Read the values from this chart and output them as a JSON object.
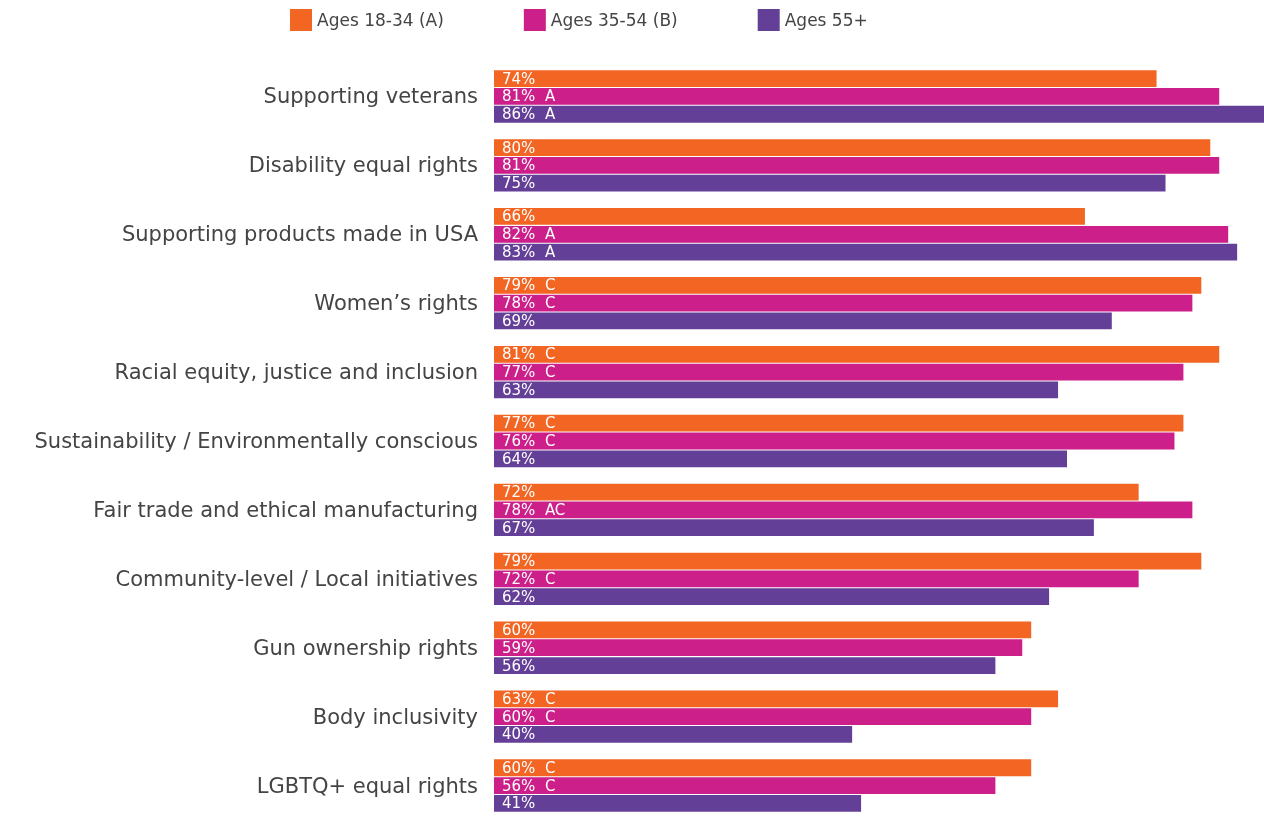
{
  "chart_data": {
    "type": "bar",
    "orientation": "horizontal",
    "legend": "top",
    "categories": [
      "Supporting veterans",
      "Disability equal rights",
      "Supporting products made in USA",
      "Women’s rights",
      "Racial equity, justice and inclusion",
      "Sustainability / Environmentally conscious",
      "Fair trade and ethical manufacturing",
      "Community-level / Local initiatives",
      "Gun ownership rights",
      "Body inclusivity",
      "LGBTQ+ equal rights"
    ],
    "series": [
      {
        "name": "Ages 18-34 (A)",
        "color": "#f26522",
        "values": [
          74,
          80,
          66,
          79,
          81,
          77,
          72,
          79,
          60,
          63,
          60
        ],
        "value_labels": [
          "74%",
          "80%",
          "66%",
          "79%  C",
          "81%  C",
          "77%  C",
          "72%",
          "79%",
          "60%",
          "63%  C",
          "60%  C"
        ]
      },
      {
        "name": "Ages 35-54 (B)",
        "color": "#cc1f8a",
        "values": [
          81,
          81,
          82,
          78,
          77,
          76,
          78,
          72,
          59,
          60,
          56
        ],
        "value_labels": [
          "81%  A",
          "81%",
          "82%  A",
          "78%  C",
          "77%  C",
          "76%  C",
          "78%  AC",
          "72%  C",
          "59%",
          "60%  C",
          "56%  C"
        ]
      },
      {
        "name": "Ages 55+",
        "color": "#643f97",
        "values": [
          86,
          75,
          83,
          69,
          63,
          64,
          67,
          62,
          56,
          40,
          41
        ],
        "value_labels": [
          "86%  A",
          "75%",
          "83%  A",
          "69%",
          "63%",
          "64%",
          "67%",
          "62%",
          "56%",
          "40%",
          "41%"
        ]
      }
    ]
  }
}
